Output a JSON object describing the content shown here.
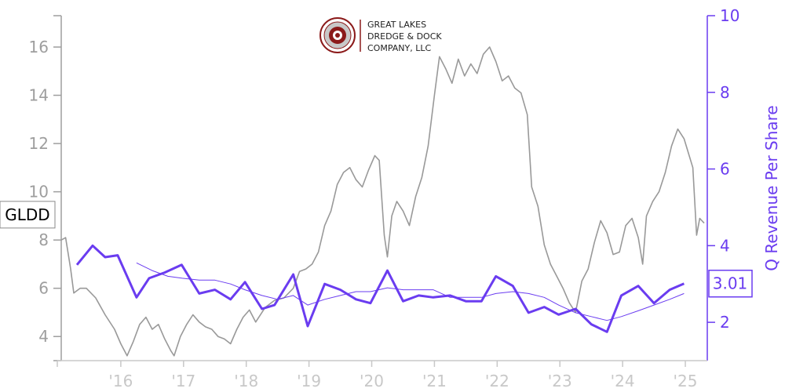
{
  "chart_data": {
    "type": "line",
    "ticker": "GLDD",
    "company_logo_text": [
      "GREAT LAKES",
      "DREDGE & DOCK",
      "COMPANY, LLC"
    ],
    "last_value_label": "3.01",
    "y_left": {
      "ticks": [
        4,
        6,
        8,
        10,
        12,
        14,
        16
      ],
      "range": [
        3,
        17.3
      ]
    },
    "y_right": {
      "label": "Q Revenue Per Share",
      "ticks": [
        2,
        4,
        6,
        8,
        10
      ],
      "range": [
        1,
        10
      ]
    },
    "x_axis": {
      "ticks": [
        2016,
        2017,
        2018,
        2019,
        2020,
        2021,
        2022,
        2023,
        2024,
        2025
      ],
      "tick_labels": [
        "'16",
        "'17",
        "'18",
        "'19",
        "'20",
        "'21",
        "'22",
        "'23",
        "'24",
        "'25"
      ],
      "range": [
        2015.05,
        2025.35
      ]
    },
    "series": [
      {
        "color": "#999999",
        "axis": "left",
        "points": [
          [
            2015.05,
            8.0
          ],
          [
            2015.12,
            8.1
          ],
          [
            2015.2,
            6.8
          ],
          [
            2015.25,
            5.8
          ],
          [
            2015.35,
            6.0
          ],
          [
            2015.45,
            6.0
          ],
          [
            2015.6,
            5.6
          ],
          [
            2015.75,
            4.9
          ],
          [
            2015.9,
            4.3
          ],
          [
            2016.0,
            3.7
          ],
          [
            2016.1,
            3.2
          ],
          [
            2016.2,
            3.8
          ],
          [
            2016.3,
            4.5
          ],
          [
            2016.4,
            4.8
          ],
          [
            2016.5,
            4.3
          ],
          [
            2016.6,
            4.5
          ],
          [
            2016.7,
            3.9
          ],
          [
            2016.8,
            3.4
          ],
          [
            2016.85,
            3.2
          ],
          [
            2016.95,
            4.0
          ],
          [
            2017.05,
            4.5
          ],
          [
            2017.15,
            4.9
          ],
          [
            2017.25,
            4.6
          ],
          [
            2017.35,
            4.4
          ],
          [
            2017.45,
            4.3
          ],
          [
            2017.55,
            4.0
          ],
          [
            2017.65,
            3.9
          ],
          [
            2017.75,
            3.7
          ],
          [
            2017.85,
            4.3
          ],
          [
            2017.95,
            4.8
          ],
          [
            2018.05,
            5.1
          ],
          [
            2018.15,
            4.6
          ],
          [
            2018.3,
            5.2
          ],
          [
            2018.45,
            5.5
          ],
          [
            2018.6,
            5.6
          ],
          [
            2018.75,
            6.0
          ],
          [
            2018.85,
            6.7
          ],
          [
            2018.95,
            6.8
          ],
          [
            2019.05,
            7.0
          ],
          [
            2019.15,
            7.5
          ],
          [
            2019.25,
            8.6
          ],
          [
            2019.35,
            9.2
          ],
          [
            2019.45,
            10.3
          ],
          [
            2019.55,
            10.8
          ],
          [
            2019.65,
            11.0
          ],
          [
            2019.75,
            10.5
          ],
          [
            2019.85,
            10.2
          ],
          [
            2019.95,
            10.9
          ],
          [
            2020.05,
            11.5
          ],
          [
            2020.12,
            11.3
          ],
          [
            2020.2,
            8.2
          ],
          [
            2020.25,
            7.3
          ],
          [
            2020.32,
            9.0
          ],
          [
            2020.4,
            9.6
          ],
          [
            2020.5,
            9.2
          ],
          [
            2020.6,
            8.6
          ],
          [
            2020.7,
            9.8
          ],
          [
            2020.8,
            10.6
          ],
          [
            2020.9,
            11.9
          ],
          [
            2021.0,
            14.0
          ],
          [
            2021.08,
            15.6
          ],
          [
            2021.18,
            15.1
          ],
          [
            2021.28,
            14.5
          ],
          [
            2021.38,
            15.5
          ],
          [
            2021.48,
            14.8
          ],
          [
            2021.58,
            15.3
          ],
          [
            2021.68,
            14.9
          ],
          [
            2021.78,
            15.7
          ],
          [
            2021.88,
            16.0
          ],
          [
            2021.98,
            15.4
          ],
          [
            2022.08,
            14.6
          ],
          [
            2022.18,
            14.8
          ],
          [
            2022.28,
            14.3
          ],
          [
            2022.38,
            14.1
          ],
          [
            2022.48,
            13.2
          ],
          [
            2022.55,
            10.2
          ],
          [
            2022.65,
            9.4
          ],
          [
            2022.75,
            7.8
          ],
          [
            2022.85,
            7.0
          ],
          [
            2022.95,
            6.5
          ],
          [
            2023.05,
            6.0
          ],
          [
            2023.15,
            5.4
          ],
          [
            2023.25,
            5.0
          ],
          [
            2023.35,
            6.3
          ],
          [
            2023.45,
            6.8
          ],
          [
            2023.55,
            7.9
          ],
          [
            2023.65,
            8.8
          ],
          [
            2023.75,
            8.3
          ],
          [
            2023.85,
            7.4
          ],
          [
            2023.95,
            7.5
          ],
          [
            2024.05,
            8.6
          ],
          [
            2024.15,
            8.9
          ],
          [
            2024.25,
            8.1
          ],
          [
            2024.32,
            7.0
          ],
          [
            2024.38,
            9.0
          ],
          [
            2024.48,
            9.6
          ],
          [
            2024.58,
            10.0
          ],
          [
            2024.68,
            10.8
          ],
          [
            2024.78,
            11.9
          ],
          [
            2024.88,
            12.6
          ],
          [
            2024.98,
            12.2
          ],
          [
            2025.05,
            11.6
          ],
          [
            2025.12,
            11.0
          ],
          [
            2025.18,
            8.2
          ],
          [
            2025.23,
            8.9
          ],
          [
            2025.3,
            8.7
          ]
        ]
      },
      {
        "name": "Q Revenue Per Share",
        "color": "#6a3cf0",
        "axis": "right",
        "points": [
          [
            2015.3,
            3.5
          ],
          [
            2015.55,
            4.0
          ],
          [
            2015.75,
            3.7
          ],
          [
            2015.95,
            3.75
          ],
          [
            2016.25,
            2.65
          ],
          [
            2016.45,
            3.15
          ],
          [
            2016.7,
            3.3
          ],
          [
            2016.97,
            3.5
          ],
          [
            2017.25,
            2.75
          ],
          [
            2017.5,
            2.85
          ],
          [
            2017.75,
            2.6
          ],
          [
            2017.98,
            3.05
          ],
          [
            2018.25,
            2.35
          ],
          [
            2018.45,
            2.45
          ],
          [
            2018.75,
            3.25
          ],
          [
            2018.98,
            1.9
          ],
          [
            2019.25,
            3.0
          ],
          [
            2019.5,
            2.85
          ],
          [
            2019.75,
            2.6
          ],
          [
            2019.98,
            2.5
          ],
          [
            2020.25,
            3.35
          ],
          [
            2020.5,
            2.55
          ],
          [
            2020.75,
            2.7
          ],
          [
            2020.98,
            2.65
          ],
          [
            2021.25,
            2.7
          ],
          [
            2021.5,
            2.55
          ],
          [
            2021.75,
            2.55
          ],
          [
            2021.98,
            3.2
          ],
          [
            2022.25,
            2.95
          ],
          [
            2022.5,
            2.25
          ],
          [
            2022.75,
            2.4
          ],
          [
            2022.98,
            2.2
          ],
          [
            2023.25,
            2.35
          ],
          [
            2023.5,
            1.95
          ],
          [
            2023.75,
            1.75
          ],
          [
            2023.98,
            2.7
          ],
          [
            2024.25,
            2.95
          ],
          [
            2024.5,
            2.5
          ],
          [
            2024.75,
            2.85
          ],
          [
            2024.98,
            3.01
          ]
        ]
      },
      {
        "color": "#6a3cf0",
        "axis": "right",
        "points": [
          [
            2016.25,
            3.55
          ],
          [
            2016.5,
            3.35
          ],
          [
            2016.75,
            3.2
          ],
          [
            2016.98,
            3.15
          ],
          [
            2017.25,
            3.1
          ],
          [
            2017.5,
            3.1
          ],
          [
            2017.75,
            3.0
          ],
          [
            2017.98,
            2.85
          ],
          [
            2018.25,
            2.7
          ],
          [
            2018.5,
            2.6
          ],
          [
            2018.75,
            2.7
          ],
          [
            2018.98,
            2.45
          ],
          [
            2019.25,
            2.6
          ],
          [
            2019.5,
            2.7
          ],
          [
            2019.75,
            2.8
          ],
          [
            2019.98,
            2.8
          ],
          [
            2020.25,
            2.9
          ],
          [
            2020.5,
            2.85
          ],
          [
            2020.75,
            2.85
          ],
          [
            2020.98,
            2.85
          ],
          [
            2021.25,
            2.65
          ],
          [
            2021.5,
            2.65
          ],
          [
            2021.75,
            2.65
          ],
          [
            2021.98,
            2.75
          ],
          [
            2022.25,
            2.8
          ],
          [
            2022.5,
            2.75
          ],
          [
            2022.75,
            2.65
          ],
          [
            2022.98,
            2.45
          ],
          [
            2023.25,
            2.25
          ],
          [
            2023.5,
            2.15
          ],
          [
            2023.75,
            2.05
          ],
          [
            2023.98,
            2.15
          ],
          [
            2024.25,
            2.3
          ],
          [
            2024.5,
            2.45
          ],
          [
            2024.75,
            2.6
          ],
          [
            2024.98,
            2.75
          ]
        ]
      }
    ]
  }
}
